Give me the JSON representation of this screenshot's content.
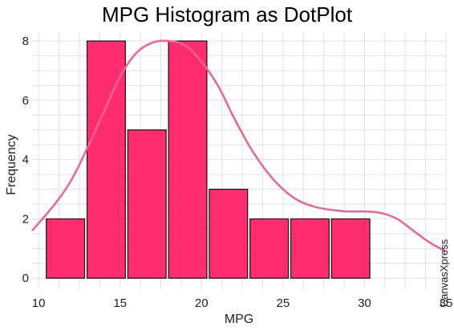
{
  "chart_data": {
    "type": "bar",
    "title": "MPG Histogram as DotPlot",
    "xlabel": "MPG",
    "ylabel": "Frequency",
    "xlim": [
      9.6,
      35.0
    ],
    "ylim": [
      -0.4,
      8.3
    ],
    "x_ticks": [
      10,
      15,
      20,
      25,
      30,
      35
    ],
    "y_ticks": [
      0,
      2,
      4,
      6,
      8
    ],
    "grid": true,
    "bin_width": 2.5,
    "bins": [
      {
        "start": 10.4,
        "end": 12.9,
        "count": 2
      },
      {
        "start": 12.9,
        "end": 15.4,
        "count": 8
      },
      {
        "start": 15.4,
        "end": 17.9,
        "count": 5
      },
      {
        "start": 17.9,
        "end": 20.4,
        "count": 8
      },
      {
        "start": 20.4,
        "end": 22.9,
        "count": 3
      },
      {
        "start": 22.9,
        "end": 25.4,
        "count": 2
      },
      {
        "start": 25.4,
        "end": 27.9,
        "count": 2
      },
      {
        "start": 27.9,
        "end": 30.4,
        "count": 2
      }
    ],
    "density_curve": {
      "x": [
        9.6,
        11.0,
        12.0,
        13.0,
        14.0,
        15.0,
        16.0,
        17.0,
        18.0,
        19.0,
        20.0,
        21.0,
        22.0,
        23.0,
        24.0,
        25.0,
        26.0,
        27.0,
        28.0,
        29.0,
        30.0,
        31.0,
        32.0,
        33.0,
        34.0,
        35.0
      ],
      "y": [
        1.6,
        2.5,
        3.3,
        4.4,
        5.6,
        6.8,
        7.6,
        7.95,
        8.0,
        7.85,
        7.3,
        6.5,
        5.4,
        4.4,
        3.6,
        3.0,
        2.6,
        2.4,
        2.3,
        2.25,
        2.25,
        2.2,
        2.0,
        1.6,
        1.2,
        0.9
      ]
    },
    "colors": {
      "bar_fill": "#ff2d6e",
      "bar_stroke": "#111111",
      "curve": "#f06292",
      "grid": "#e2e2e2"
    }
  },
  "watermark": "CanvasXpress"
}
